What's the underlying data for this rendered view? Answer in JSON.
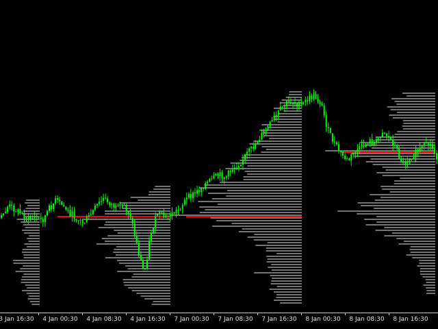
{
  "window": {
    "background": "#000000",
    "candle_color": "#00ff00",
    "profile_color": "#e8e8e8",
    "poc_color": "#ff0000"
  },
  "time_axis": {
    "labels": [
      "3 Jan 16:30",
      "4 Jan 00:30",
      "4 Jan 08:30",
      "4 Jan 16:30",
      "7 Jan 00:30",
      "7 Jan 08:30",
      "7 Jan 16:30",
      "8 Jan 00:30",
      "8 Jan 08:30",
      "8 Jan 16:30"
    ]
  },
  "chart_data": {
    "type": "candlestick with volume profiles",
    "x_tick_labels": [
      "3 Jan 16:30",
      "4 Jan 00:30",
      "4 Jan 08:30",
      "4 Jan 16:30",
      "7 Jan 00:30",
      "7 Jan 08:30",
      "7 Jan 16:30",
      "8 Jan 00:30",
      "8 Jan 08:30",
      "8 Jan 16:30"
    ],
    "price_path": [
      318,
      300,
      305,
      312,
      320,
      316,
      322,
      305,
      292,
      300,
      310,
      318,
      325,
      315,
      300,
      290,
      296,
      305,
      300,
      315,
      360,
      400,
      340,
      310,
      318,
      312,
      306,
      292,
      285,
      278,
      268,
      262,
      255,
      258,
      245,
      238,
      225,
      215,
      200,
      188,
      175,
      160,
      150,
      148,
      155,
      145,
      140,
      150,
      190,
      210,
      225,
      235,
      220,
      215,
      205,
      210,
      190,
      200,
      215,
      240,
      230,
      222,
      215,
      210,
      228
    ],
    "sessions": [
      "3 Jan",
      "4 Jan",
      "7 Jan",
      "8 Jan"
    ],
    "series": []
  }
}
